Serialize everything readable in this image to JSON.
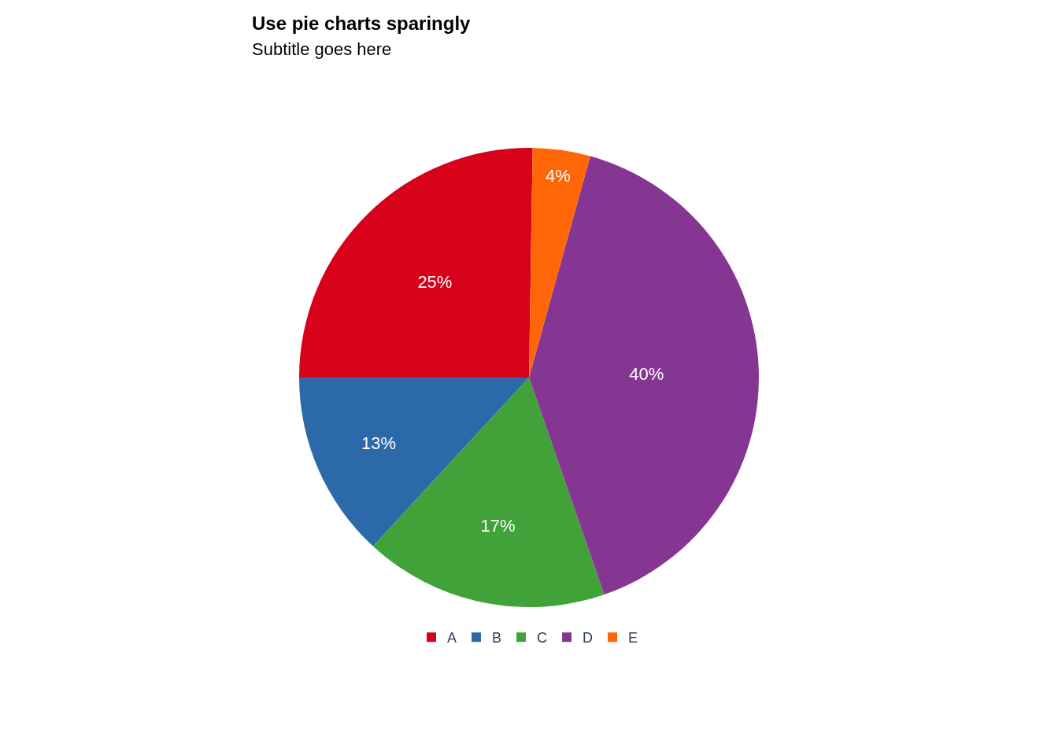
{
  "chart_data": {
    "type": "pie",
    "title": "Use pie charts sparingly",
    "subtitle": "Subtitle goes here",
    "categories": [
      "A",
      "B",
      "C",
      "D",
      "E"
    ],
    "values": [
      25,
      13,
      17,
      40,
      4
    ],
    "value_labels": [
      "25%",
      "13%",
      "17%",
      "40%",
      "4%"
    ],
    "colors": [
      "#d7011a",
      "#2c69a9",
      "#41a23a",
      "#853692",
      "#ff6608"
    ],
    "legend": "bottom"
  }
}
